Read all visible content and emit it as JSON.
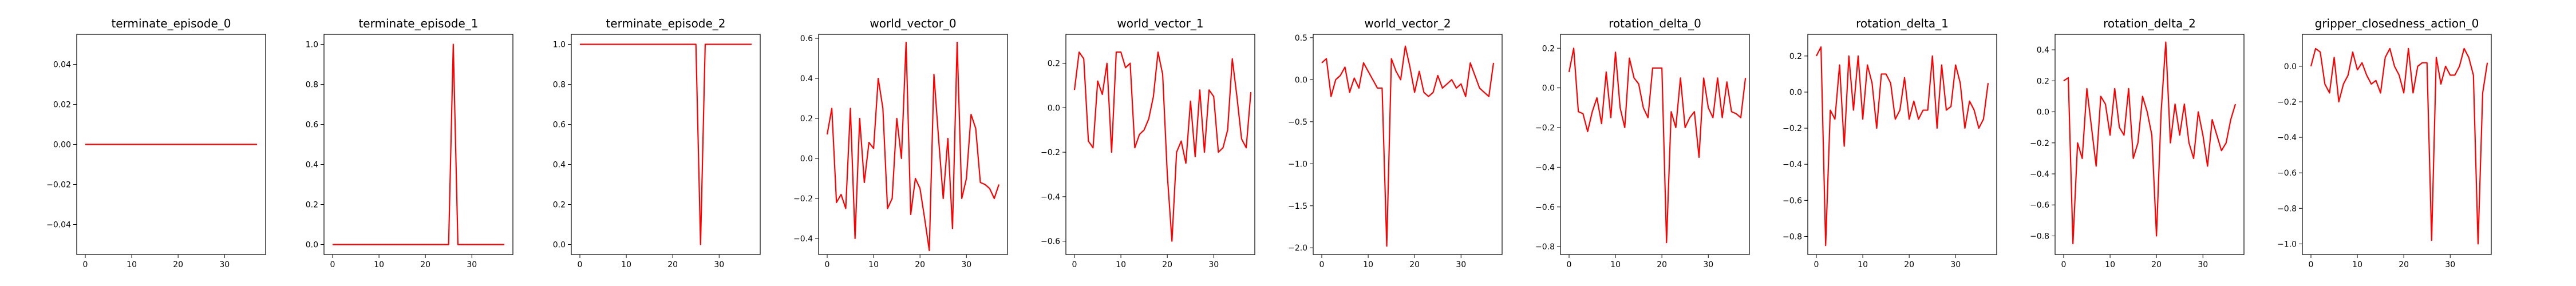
{
  "line_color": "#ff0000",
  "chart_data": [
    {
      "type": "line",
      "title": "terminate_episode_0",
      "xlim": [
        -1.85,
        38.85
      ],
      "ylim": [
        -0.055,
        0.055
      ],
      "x_ticks": [
        0,
        10,
        20,
        30
      ],
      "y_ticks": [
        -0.04,
        -0.02,
        0.0,
        0.02,
        0.04
      ],
      "y_tick_labels": [
        "−0.04",
        "−0.02",
        "0.00",
        "0.02",
        "0.04"
      ],
      "y": [
        0,
        0,
        0,
        0,
        0,
        0,
        0,
        0,
        0,
        0,
        0,
        0,
        0,
        0,
        0,
        0,
        0,
        0,
        0,
        0,
        0,
        0,
        0,
        0,
        0,
        0,
        0,
        0,
        0,
        0,
        0,
        0,
        0,
        0,
        0,
        0,
        0,
        0
      ]
    },
    {
      "type": "line",
      "title": "terminate_episode_1",
      "xlim": [
        -1.85,
        38.85
      ],
      "ylim": [
        -0.05,
        1.05
      ],
      "x_ticks": [
        0,
        10,
        20,
        30
      ],
      "y_ticks": [
        0.0,
        0.2,
        0.4,
        0.6,
        0.8,
        1.0
      ],
      "y_tick_labels": [
        "0.0",
        "0.2",
        "0.4",
        "0.6",
        "0.8",
        "1.0"
      ],
      "y": [
        0,
        0,
        0,
        0,
        0,
        0,
        0,
        0,
        0,
        0,
        0,
        0,
        0,
        0,
        0,
        0,
        0,
        0,
        0,
        0,
        0,
        0,
        0,
        0,
        0,
        0,
        1,
        0,
        0,
        0,
        0,
        0,
        0,
        0,
        0,
        0,
        0,
        0
      ]
    },
    {
      "type": "line",
      "title": "terminate_episode_2",
      "xlim": [
        -1.85,
        38.85
      ],
      "ylim": [
        -0.05,
        1.05
      ],
      "x_ticks": [
        0,
        10,
        20,
        30
      ],
      "y_ticks": [
        0.0,
        0.2,
        0.4,
        0.6,
        0.8,
        1.0
      ],
      "y_tick_labels": [
        "0.0",
        "0.2",
        "0.4",
        "0.6",
        "0.8",
        "1.0"
      ],
      "y": [
        1,
        1,
        1,
        1,
        1,
        1,
        1,
        1,
        1,
        1,
        1,
        1,
        1,
        1,
        1,
        1,
        1,
        1,
        1,
        1,
        1,
        1,
        1,
        1,
        1,
        1,
        0,
        1,
        1,
        1,
        1,
        1,
        1,
        1,
        1,
        1,
        1,
        1
      ]
    },
    {
      "type": "line",
      "title": "world_vector_0",
      "xlim": [
        -1.85,
        38.85
      ],
      "ylim": [
        -0.48,
        0.62
      ],
      "x_ticks": [
        0,
        10,
        20,
        30
      ],
      "y_ticks": [
        -0.4,
        -0.2,
        0.0,
        0.2,
        0.4,
        0.6
      ],
      "y_tick_labels": [
        "−0.4",
        "−0.2",
        "0.0",
        "0.2",
        "0.4",
        "0.6"
      ],
      "y": [
        0.12,
        0.25,
        -0.22,
        -0.18,
        -0.25,
        0.25,
        -0.4,
        0.2,
        -0.12,
        0.08,
        0.05,
        0.4,
        0.25,
        -0.25,
        -0.2,
        0.2,
        0.0,
        0.58,
        -0.28,
        -0.1,
        -0.15,
        -0.3,
        -0.46,
        0.42,
        0.1,
        -0.2,
        0.1,
        -0.35,
        0.58,
        -0.2,
        -0.1,
        0.22,
        0.15,
        -0.12,
        -0.13,
        -0.15,
        -0.2,
        -0.13
      ]
    },
    {
      "type": "line",
      "title": "world_vector_1",
      "xlim": [
        -1.85,
        38.85
      ],
      "ylim": [
        -0.66,
        0.33
      ],
      "x_ticks": [
        0,
        10,
        20,
        30
      ],
      "y_ticks": [
        -0.6,
        -0.4,
        -0.2,
        0.0,
        0.2
      ],
      "y_tick_labels": [
        "−0.6",
        "−0.4",
        "−0.2",
        "0.0",
        "0.2"
      ],
      "y": [
        0.08,
        0.25,
        0.22,
        -0.15,
        -0.18,
        0.12,
        0.06,
        0.2,
        -0.2,
        0.25,
        0.25,
        0.18,
        0.2,
        -0.18,
        -0.12,
        -0.1,
        -0.05,
        0.05,
        0.25,
        0.15,
        -0.3,
        -0.6,
        -0.2,
        -0.15,
        -0.25,
        0.03,
        -0.22,
        0.08,
        -0.2,
        0.08,
        0.05,
        -0.2,
        -0.18,
        -0.1,
        0.22,
        0.05,
        -0.14,
        -0.18,
        0.07
      ]
    },
    {
      "type": "line",
      "title": "world_vector_2",
      "xlim": [
        -1.85,
        38.85
      ],
      "ylim": [
        -2.08,
        0.54
      ],
      "x_ticks": [
        0,
        10,
        20,
        30
      ],
      "y_ticks": [
        -2.0,
        -1.5,
        -1.0,
        -0.5,
        0.0,
        0.5
      ],
      "y_tick_labels": [
        "−2.0",
        "−1.5",
        "−1.0",
        "−0.5",
        "0.0",
        "0.5"
      ],
      "y": [
        0.2,
        0.25,
        -0.2,
        0.0,
        0.05,
        0.15,
        -0.15,
        0.02,
        -0.1,
        0.2,
        0.1,
        0.0,
        -0.1,
        -0.1,
        -1.98,
        0.25,
        0.1,
        0.0,
        0.4,
        0.15,
        -0.15,
        0.1,
        -0.15,
        -0.2,
        -0.15,
        0.05,
        -0.1,
        -0.05,
        0.0,
        -0.1,
        -0.05,
        -0.2,
        0.2,
        0.05,
        -0.1,
        -0.15,
        -0.2,
        0.2
      ]
    },
    {
      "type": "line",
      "title": "rotation_delta_0",
      "xlim": [
        -1.85,
        38.85
      ],
      "ylim": [
        -0.84,
        0.27
      ],
      "x_ticks": [
        0,
        10,
        20,
        30
      ],
      "y_ticks": [
        -0.8,
        -0.6,
        -0.4,
        -0.2,
        0.0,
        0.2
      ],
      "y_tick_labels": [
        "−0.8",
        "−0.6",
        "−0.4",
        "−0.2",
        "0.0",
        "0.2"
      ],
      "y": [
        0.08,
        0.2,
        -0.12,
        -0.13,
        -0.22,
        -0.12,
        -0.05,
        -0.18,
        0.08,
        -0.15,
        0.18,
        -0.1,
        -0.2,
        0.15,
        0.05,
        0.02,
        -0.1,
        -0.15,
        0.1,
        0.1,
        0.1,
        -0.78,
        -0.12,
        -0.2,
        0.05,
        -0.2,
        -0.15,
        -0.12,
        -0.35,
        0.05,
        -0.1,
        -0.15,
        0.05,
        -0.15,
        0.03,
        -0.12,
        -0.13,
        -0.15,
        0.05
      ]
    },
    {
      "type": "line",
      "title": "rotation_delta_1",
      "xlim": [
        -1.85,
        38.85
      ],
      "ylim": [
        -0.9,
        0.32
      ],
      "x_ticks": [
        0,
        10,
        20,
        30
      ],
      "y_ticks": [
        -0.8,
        -0.6,
        -0.4,
        -0.2,
        0.0,
        0.2
      ],
      "y_tick_labels": [
        "−0.8",
        "−0.6",
        "−0.4",
        "−0.2",
        "0.0",
        "0.2"
      ],
      "y": [
        0.2,
        0.25,
        -0.85,
        -0.1,
        -0.15,
        0.15,
        -0.3,
        0.2,
        -0.1,
        0.2,
        -0.15,
        0.15,
        0.05,
        -0.2,
        0.1,
        0.1,
        0.05,
        -0.15,
        -0.1,
        0.08,
        -0.15,
        -0.05,
        -0.15,
        -0.1,
        -0.1,
        0.2,
        -0.2,
        0.15,
        -0.1,
        -0.08,
        0.15,
        0.05,
        -0.2,
        -0.05,
        -0.1,
        -0.2,
        -0.15,
        0.05
      ]
    },
    {
      "type": "line",
      "title": "rotation_delta_2",
      "xlim": [
        -1.85,
        38.85
      ],
      "ylim": [
        -0.92,
        0.5
      ],
      "x_ticks": [
        0,
        10,
        20,
        30
      ],
      "y_ticks": [
        -0.8,
        -0.6,
        -0.4,
        -0.2,
        0.0,
        0.2,
        0.4
      ],
      "y_tick_labels": [
        "−0.8",
        "−0.6",
        "−0.4",
        "−0.2",
        "0.0",
        "0.2",
        "0.4"
      ],
      "y": [
        0.2,
        0.22,
        -0.85,
        -0.2,
        -0.3,
        0.15,
        -0.1,
        -0.35,
        0.1,
        0.05,
        -0.15,
        0.15,
        -0.1,
        -0.15,
        0.15,
        -0.3,
        -0.2,
        0.1,
        0.0,
        -0.15,
        -0.8,
        0.0,
        0.45,
        -0.2,
        0.05,
        -0.15,
        0.05,
        -0.2,
        -0.3,
        0.0,
        -0.15,
        -0.35,
        -0.05,
        -0.15,
        -0.25,
        -0.2,
        -0.05,
        0.05
      ]
    },
    {
      "type": "line",
      "title": "gripper_closedness_action_0",
      "xlim": [
        -1.85,
        38.85
      ],
      "ylim": [
        -1.06,
        0.18
      ],
      "x_ticks": [
        0,
        10,
        20,
        30
      ],
      "y_ticks": [
        -1.0,
        -0.8,
        -0.6,
        -0.4,
        -0.2,
        0.0
      ],
      "y_tick_labels": [
        "−1.0",
        "−0.8",
        "−0.6",
        "−0.4",
        "−0.2",
        "0.0"
      ],
      "y": [
        0.0,
        0.1,
        0.08,
        -0.1,
        -0.15,
        0.05,
        -0.2,
        -0.1,
        -0.05,
        0.08,
        -0.02,
        0.02,
        -0.05,
        -0.1,
        -0.08,
        -0.15,
        0.05,
        0.1,
        0.0,
        -0.05,
        -0.15,
        0.1,
        -0.15,
        0.0,
        0.02,
        0.02,
        -0.98,
        0.05,
        -0.1,
        0.0,
        -0.05,
        -0.05,
        0.0,
        0.1,
        0.05,
        -0.05,
        -1.0,
        -0.15,
        0.02
      ]
    }
  ]
}
